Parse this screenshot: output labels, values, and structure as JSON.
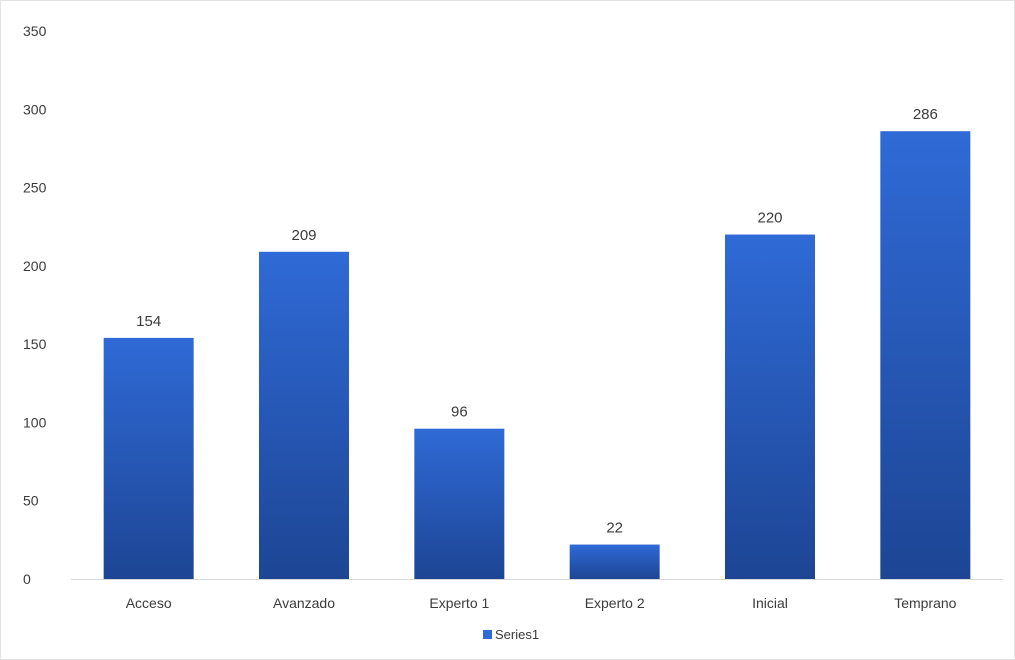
{
  "chart_data": {
    "type": "bar",
    "categories": [
      "Acceso",
      "Avanzado",
      "Experto 1",
      "Experto 2",
      "Inicial",
      "Temprano"
    ],
    "series": [
      {
        "name": "Series1",
        "values": [
          154,
          209,
          96,
          22,
          220,
          286
        ]
      }
    ],
    "ylim": [
      0,
      350
    ],
    "yticks": [
      0,
      50,
      100,
      150,
      200,
      250,
      300,
      350
    ],
    "data_labels": true,
    "grid": false,
    "legend": "bottom",
    "colors": {
      "bar_top": "#2f6ad6",
      "bar_bottom": "#1d4594",
      "axis": "#d9d9d9",
      "text": "#3b3b3b"
    }
  }
}
